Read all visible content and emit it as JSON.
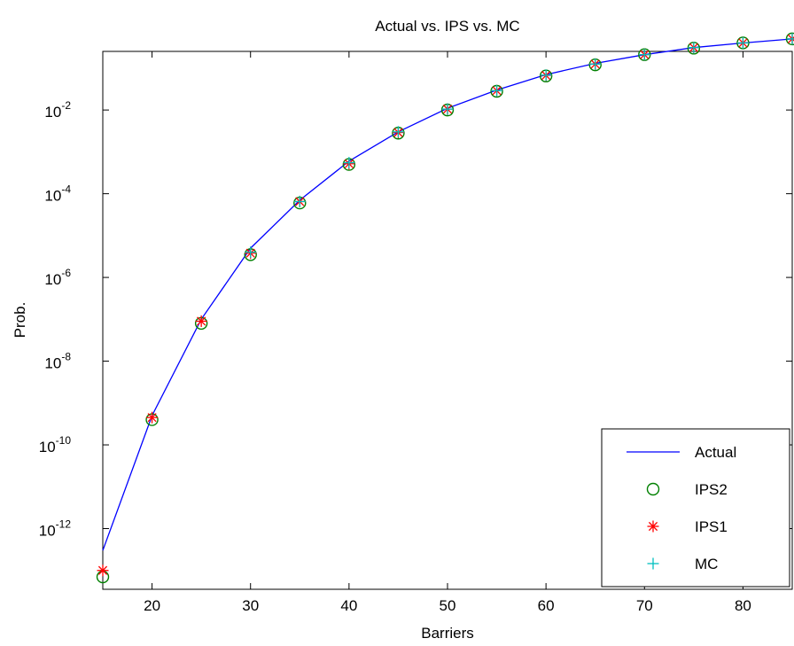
{
  "chart_data": {
    "type": "line",
    "title": "Actual vs. IPS vs. MC",
    "xlabel": "Barriers",
    "ylabel": "Prob.",
    "xlim": [
      15,
      85
    ],
    "ylim_log10": [
      -13.45,
      -0.6
    ],
    "yscale": "log",
    "grid": false,
    "legend_position": "bottom-right",
    "x_ticks": [
      20,
      30,
      40,
      50,
      60,
      70,
      80
    ],
    "y_ticks": [
      {
        "exp": -12,
        "base": "10",
        "sup": "-12"
      },
      {
        "exp": -10,
        "base": "10",
        "sup": "-10"
      },
      {
        "exp": -8,
        "base": "10",
        "sup": "-8"
      },
      {
        "exp": -6,
        "base": "10",
        "sup": "-6"
      },
      {
        "exp": -4,
        "base": "10",
        "sup": "-4"
      },
      {
        "exp": -2,
        "base": "10",
        "sup": "-2"
      }
    ],
    "x": [
      15,
      20,
      25,
      30,
      35,
      40,
      45,
      50,
      55,
      60,
      65,
      70,
      75,
      80,
      85
    ],
    "series": [
      {
        "name": "Actual",
        "marker": "line",
        "color": "#0000ff",
        "values": [
          3e-13,
          5e-10,
          1e-07,
          5e-06,
          7e-05,
          0.0006,
          0.003,
          0.011,
          0.03,
          0.07,
          0.13,
          0.21,
          0.31,
          0.4,
          0.5
        ]
      },
      {
        "name": "IPS2",
        "marker": "circle",
        "color": "#008000",
        "values": [
          7e-14,
          4e-10,
          8e-08,
          3.5e-06,
          6e-05,
          0.0005,
          0.0028,
          0.01,
          0.028,
          0.065,
          0.12,
          0.21,
          0.3,
          0.4,
          0.5
        ]
      },
      {
        "name": "IPS1",
        "marker": "star",
        "color": "#ff0000",
        "values": [
          1e-13,
          4.5e-10,
          9e-08,
          3.8e-06,
          6.5e-05,
          0.00052,
          0.0029,
          0.0105,
          0.029,
          0.067,
          0.125,
          0.21,
          0.31,
          0.4,
          0.5
        ]
      },
      {
        "name": "MC",
        "marker": "plus",
        "color": "#00bfbf",
        "values": [
          null,
          null,
          null,
          4e-06,
          6.5e-05,
          0.00055,
          0.003,
          0.0105,
          0.029,
          0.068,
          0.125,
          0.21,
          0.31,
          0.4,
          0.5
        ]
      }
    ]
  }
}
